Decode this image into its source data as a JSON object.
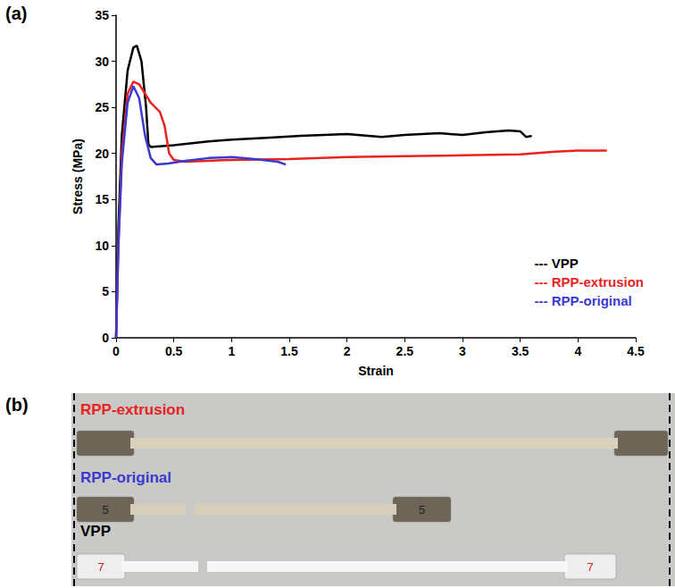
{
  "chart_data": {
    "type": "line",
    "xlabel": "Strain",
    "ylabel": "Stress (MPa)",
    "xlim": [
      0,
      4.5
    ],
    "xticks": [
      0,
      0.5,
      1,
      1.5,
      2,
      2.5,
      3,
      3.5,
      4,
      4.5
    ],
    "ylim": [
      0,
      35
    ],
    "yticks": [
      0,
      5,
      10,
      15,
      20,
      25,
      30,
      35
    ],
    "grid": false,
    "legend": "lower right",
    "series": [
      {
        "name": "--- VPP",
        "color": "#000000",
        "line_style": "solid",
        "x": [
          0,
          0.02,
          0.05,
          0.1,
          0.15,
          0.18,
          0.22,
          0.26,
          0.28,
          0.3,
          0.5,
          0.8,
          1.0,
          1.3,
          1.6,
          2.0,
          2.3,
          2.5,
          2.8,
          3.0,
          3.2,
          3.4,
          3.5,
          3.55,
          3.6
        ],
        "values": [
          0,
          12,
          22,
          29,
          31.5,
          31.7,
          30,
          25,
          21,
          20.7,
          20.9,
          21.3,
          21.5,
          21.7,
          21.9,
          22.1,
          21.8,
          22,
          22.2,
          22,
          22.3,
          22.5,
          22.4,
          21.8,
          21.9
        ]
      },
      {
        "name": "--- RPP-extrusion",
        "color": "#e8231f",
        "line_style": "solid",
        "x": [
          0,
          0.02,
          0.05,
          0.1,
          0.15,
          0.2,
          0.25,
          0.3,
          0.38,
          0.42,
          0.46,
          0.5,
          0.6,
          1.0,
          1.5,
          2.0,
          2.5,
          3.0,
          3.5,
          3.8,
          4.0,
          4.25
        ],
        "values": [
          0,
          10,
          20,
          26.5,
          27.8,
          27.5,
          26.5,
          25.5,
          24.5,
          23,
          20,
          19.3,
          19.1,
          19.3,
          19.4,
          19.6,
          19.7,
          19.8,
          19.9,
          20.2,
          20.3,
          20.3
        ]
      },
      {
        "name": "--- RPP-original",
        "color": "#3a3ad0",
        "line_style": "solid",
        "x": [
          0,
          0.02,
          0.05,
          0.1,
          0.15,
          0.2,
          0.25,
          0.3,
          0.35,
          0.45,
          0.6,
          0.8,
          1.0,
          1.2,
          1.4,
          1.47
        ],
        "values": [
          0,
          10,
          19,
          25.5,
          27.3,
          26,
          22,
          19.5,
          18.8,
          18.9,
          19.2,
          19.5,
          19.6,
          19.4,
          19.1,
          18.8
        ]
      }
    ]
  },
  "panels": {
    "a": "(a)",
    "b": "(b)"
  },
  "photo": {
    "specimens": [
      {
        "name": "RPP-extrusion",
        "color": "#e8231f"
      },
      {
        "name": "RPP-original",
        "color": "#3a3ad0",
        "marks": [
          "5",
          "5"
        ]
      },
      {
        "name": "VPP",
        "color": "#000000",
        "marks": [
          "7",
          "7"
        ]
      }
    ]
  }
}
